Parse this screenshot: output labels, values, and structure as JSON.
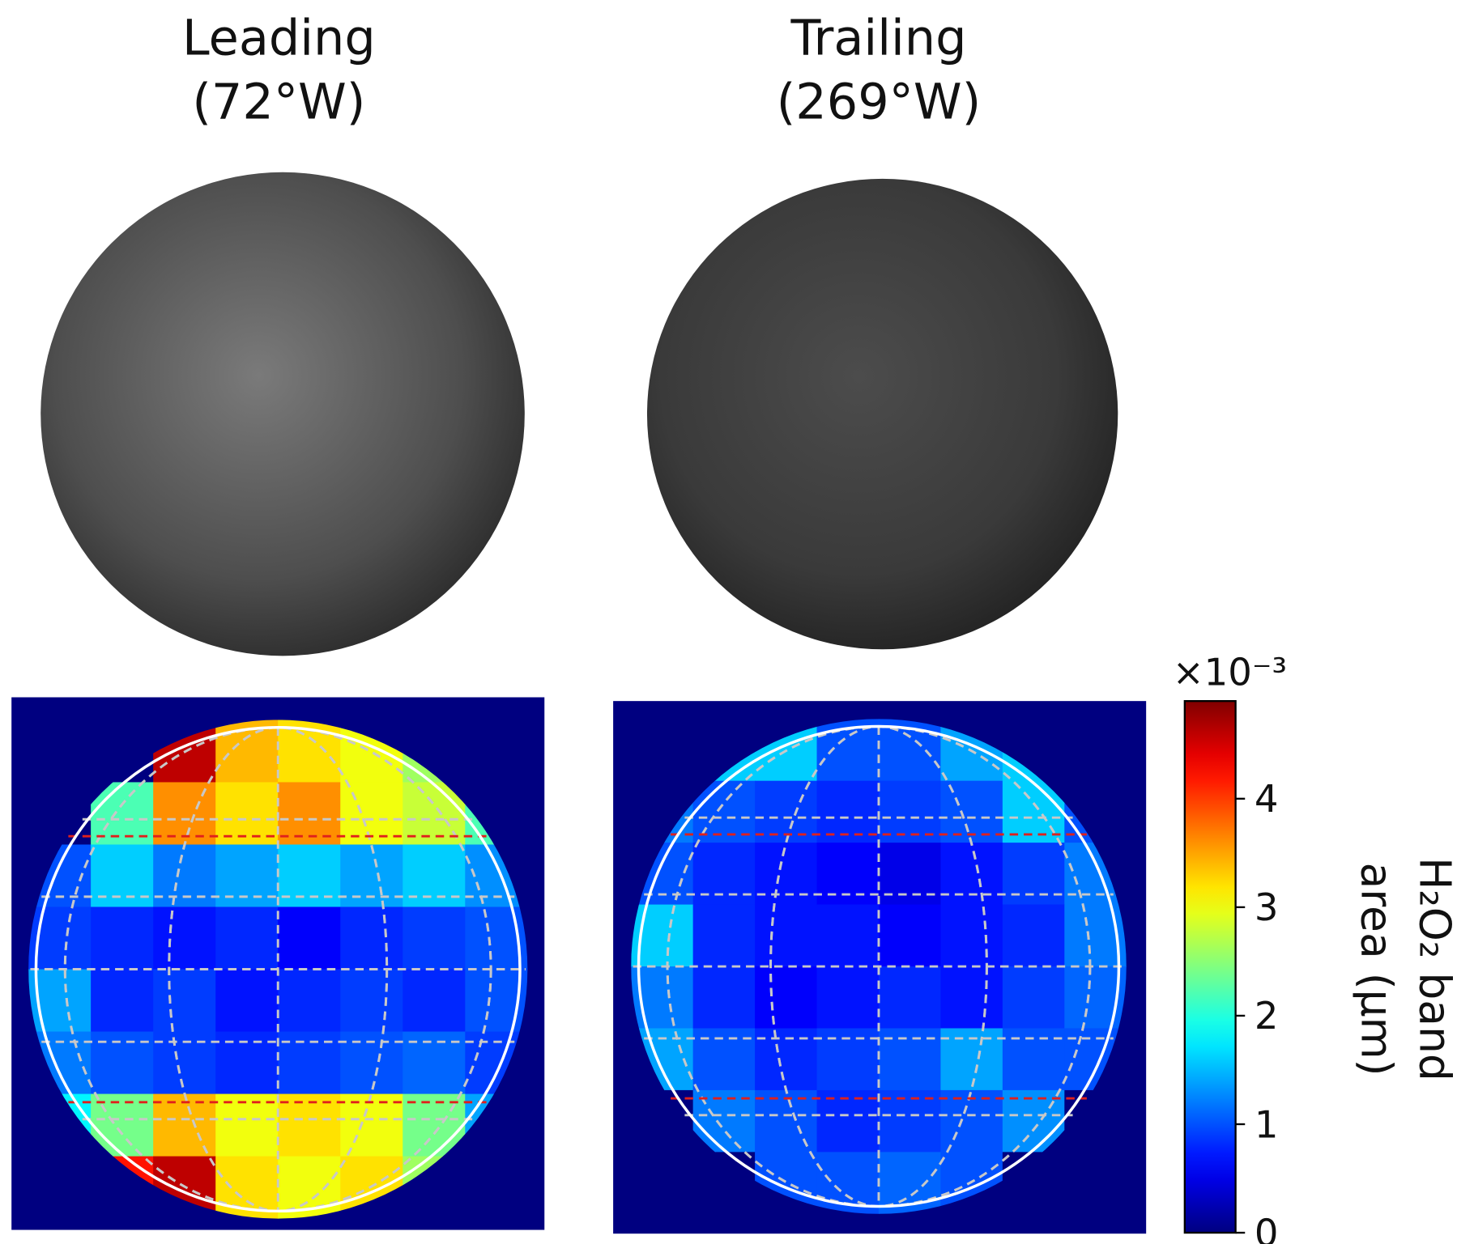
{
  "chart_data": {
    "type": "heatmap",
    "panels": [
      {
        "title": "Leading",
        "subtitle": "(72°W)",
        "values": [
          [
            0,
            0,
            4.6,
            3.4,
            3.2,
            3.0,
            2.6,
            0
          ],
          [
            0,
            2.2,
            3.6,
            3.2,
            3.6,
            3.0,
            2.8,
            2.2
          ],
          [
            1.0,
            1.6,
            1.2,
            1.4,
            1.6,
            1.4,
            1.6,
            1.3
          ],
          [
            0.9,
            0.8,
            0.7,
            0.8,
            0.6,
            0.8,
            0.9,
            1.0
          ],
          [
            1.4,
            0.8,
            0.9,
            0.7,
            0.8,
            0.9,
            0.8,
            1.0
          ],
          [
            1.2,
            1.0,
            0.9,
            0.8,
            0.9,
            1.0,
            1.1,
            0.9
          ],
          [
            1.8,
            2.4,
            3.4,
            3.0,
            3.2,
            3.0,
            2.4,
            1.4
          ],
          [
            0,
            4.2,
            4.6,
            3.2,
            3.0,
            3.2,
            2.6,
            0
          ]
        ]
      },
      {
        "title": "Trailing",
        "subtitle": "(269°W)",
        "values": [
          [
            0,
            1.6,
            1.6,
            1.0,
            1.0,
            1.4,
            1.6,
            0
          ],
          [
            1.2,
            1.0,
            0.9,
            0.8,
            0.9,
            1.0,
            1.6,
            1.0
          ],
          [
            1.0,
            0.8,
            0.7,
            0.6,
            0.5,
            0.7,
            0.9,
            1.2
          ],
          [
            1.6,
            0.8,
            0.7,
            0.7,
            0.6,
            0.7,
            0.8,
            1.2
          ],
          [
            1.2,
            0.8,
            0.6,
            0.7,
            0.8,
            0.7,
            0.9,
            1.1
          ],
          [
            1.4,
            1.0,
            0.8,
            0.9,
            1.0,
            1.4,
            1.0,
            1.0
          ],
          [
            0,
            1.2,
            1.0,
            0.8,
            0.9,
            1.0,
            1.3,
            0
          ],
          [
            0,
            0,
            1.0,
            1.0,
            1.1,
            1.0,
            0,
            0
          ]
        ]
      }
    ],
    "colormap": "jet",
    "clim": [
      0,
      4.9
    ],
    "cticks": [
      0,
      1,
      2,
      3,
      4
    ],
    "colorbar_multiplier": "×10⁻³",
    "colorbar_label": [
      "H₂O₂ band",
      "area (μm)"
    ]
  }
}
